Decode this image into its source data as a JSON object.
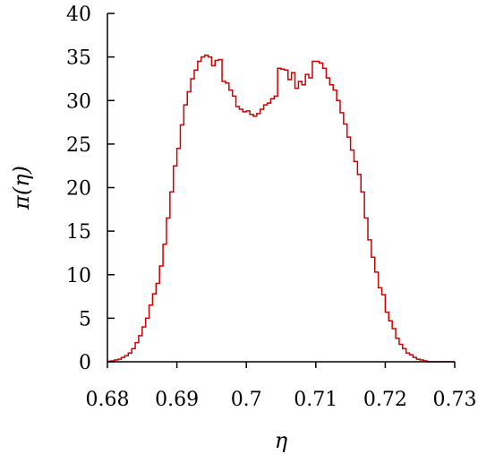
{
  "chart_data": {
    "type": "histogram",
    "xlabel": "η",
    "ylabel": "π(η)",
    "xlim": [
      0.68,
      0.73
    ],
    "ylim": [
      0,
      40
    ],
    "x_ticks": [
      0.68,
      0.69,
      0.7,
      0.71,
      0.72,
      0.73
    ],
    "x_tick_labels": [
      "0.68",
      "0.69",
      "0.7",
      "0.71",
      "0.72",
      "0.73"
    ],
    "y_ticks": [
      0,
      5,
      10,
      15,
      20,
      25,
      30,
      35,
      40
    ],
    "y_tick_labels": [
      "0",
      "5",
      "10",
      "15",
      "20",
      "25",
      "30",
      "35",
      "40"
    ],
    "grid": false,
    "line_color": "#cc0000",
    "series": [
      {
        "bin_edges": [
          0.68,
          0.6805,
          0.681,
          0.6815,
          0.682,
          0.6825,
          0.683,
          0.6835,
          0.684,
          0.6845,
          0.685,
          0.6855,
          0.686,
          0.6865,
          0.687,
          0.6875,
          0.688,
          0.6885,
          0.689,
          0.6895,
          0.69,
          0.6905,
          0.691,
          0.6915,
          0.692,
          0.6925,
          0.693,
          0.6935,
          0.694,
          0.6945,
          0.695,
          0.6955,
          0.696,
          0.6965,
          0.697,
          0.6975,
          0.698,
          0.6985,
          0.699,
          0.6995,
          0.7,
          0.7005,
          0.701,
          0.7015,
          0.702,
          0.7025,
          0.703,
          0.7035,
          0.704,
          0.7045,
          0.705,
          0.7055,
          0.706,
          0.7065,
          0.707,
          0.7075,
          0.708,
          0.7085,
          0.709,
          0.7095,
          0.71,
          0.7105,
          0.711,
          0.7115,
          0.712,
          0.7125,
          0.713,
          0.7135,
          0.714,
          0.7145,
          0.715,
          0.7155,
          0.716,
          0.7165,
          0.717,
          0.7175,
          0.718,
          0.7185,
          0.719,
          0.7195,
          0.72,
          0.7205,
          0.721,
          0.7215,
          0.722,
          0.7225,
          0.723,
          0.7235,
          0.724,
          0.7245,
          0.725,
          0.7255,
          0.726,
          0.7265,
          0.727,
          0.7275,
          0.728,
          0.7285,
          0.729,
          0.7295,
          0.73
        ],
        "values": [
          0.05,
          0.1,
          0.2,
          0.3,
          0.5,
          0.7,
          1.0,
          1.5,
          2.2,
          3.0,
          4.0,
          5.0,
          6.5,
          7.8,
          9.0,
          11.0,
          13.5,
          16.5,
          19.5,
          22.5,
          24.5,
          27.2,
          29.5,
          31.0,
          32.5,
          33.5,
          34.5,
          35.0,
          35.2,
          35.0,
          34.0,
          34.6,
          34.7,
          32.2,
          32.0,
          31.2,
          30.5,
          29.3,
          29.0,
          28.7,
          28.8,
          28.4,
          28.2,
          28.5,
          29.0,
          29.5,
          29.7,
          30.2,
          30.5,
          33.7,
          33.6,
          33.5,
          32.4,
          33.2,
          31.4,
          32.2,
          31.8,
          33.0,
          32.6,
          34.5,
          34.5,
          34.3,
          33.7,
          32.6,
          31.8,
          31.2,
          30.0,
          28.6,
          27.3,
          25.8,
          24.3,
          23.0,
          21.5,
          19.5,
          16.5,
          14.0,
          12.0,
          10.3,
          8.5,
          7.7,
          5.7,
          4.7,
          3.8,
          2.7,
          2.0,
          1.5,
          1.0,
          0.8,
          0.5,
          0.3,
          0.2,
          0.1,
          0.0,
          0.0,
          0.0,
          0.0,
          0.0,
          0.0,
          0.0,
          0.0
        ]
      }
    ]
  }
}
